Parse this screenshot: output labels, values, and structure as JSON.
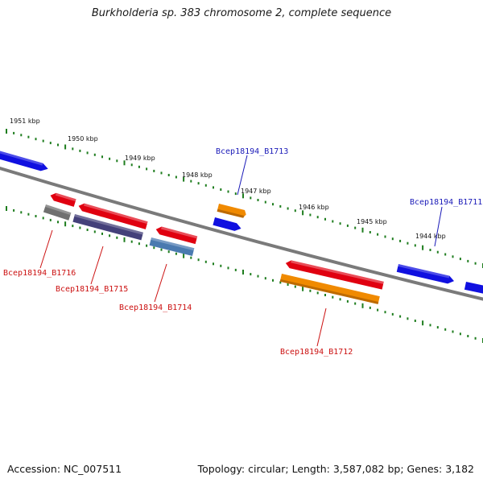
{
  "title": "Burkholderia sp. 383 chromosome 2, complete sequence",
  "footer": {
    "accession": "Accession: NC_007511",
    "topology": "Topology: circular; Length: 3,587,082 bp; Genes: 3,182"
  },
  "colors": {
    "backbone": "#7a7a7a",
    "ticks": "#1e7d1e",
    "forward_label": "#1a1ab8",
    "reverse_label": "#cc1111"
  },
  "scale_labels": [
    {
      "text": "1951 kbp"
    },
    {
      "text": "1950 kbp"
    },
    {
      "text": "1949 kbp"
    },
    {
      "text": "1948 kbp"
    },
    {
      "text": "1947 kbp"
    },
    {
      "text": "1946 kbp"
    },
    {
      "text": "1945 kbp"
    },
    {
      "text": "1944 kbp"
    }
  ],
  "gene_labels": [
    {
      "text": "Bcep18194_B1713",
      "strand": "forward"
    },
    {
      "text": "Bcep18194_B1711",
      "strand": "forward"
    },
    {
      "text": "Bcep18194_B1716",
      "strand": "reverse"
    },
    {
      "text": "Bcep18194_B1715",
      "strand": "reverse"
    },
    {
      "text": "Bcep18194_B1714",
      "strand": "reverse"
    },
    {
      "text": "Bcep18194_B1712",
      "strand": "reverse"
    }
  ],
  "features": [
    {
      "id": "fwd-blue-1",
      "color": "#1010e0",
      "strand": "forward"
    },
    {
      "id": "fwd-orange-B1713",
      "color": "#f08a00",
      "strand": "forward"
    },
    {
      "id": "fwd-blue-B1713",
      "color": "#1010e0",
      "strand": "forward"
    },
    {
      "id": "fwd-blue-B1711",
      "color": "#1010e0",
      "strand": "forward"
    },
    {
      "id": "fwd-blue-edge",
      "color": "#1010e0",
      "strand": "forward"
    },
    {
      "id": "rev-red-small",
      "color": "#e00010",
      "strand": "reverse"
    },
    {
      "id": "rev-gray-B1716",
      "color": "#707070",
      "strand": "reverse"
    },
    {
      "id": "rev-red-B1715",
      "color": "#e00010",
      "strand": "reverse"
    },
    {
      "id": "rev-purple-B1715",
      "color": "#44407a",
      "strand": "reverse"
    },
    {
      "id": "rev-red-B1714",
      "color": "#e00010",
      "strand": "reverse"
    },
    {
      "id": "rev-steel-B1714",
      "color": "#4a7ab0",
      "strand": "reverse"
    },
    {
      "id": "rev-red-B1712",
      "color": "#e00010",
      "strand": "reverse"
    },
    {
      "id": "rev-orange-B1712",
      "color": "#f08a00",
      "strand": "reverse"
    }
  ]
}
